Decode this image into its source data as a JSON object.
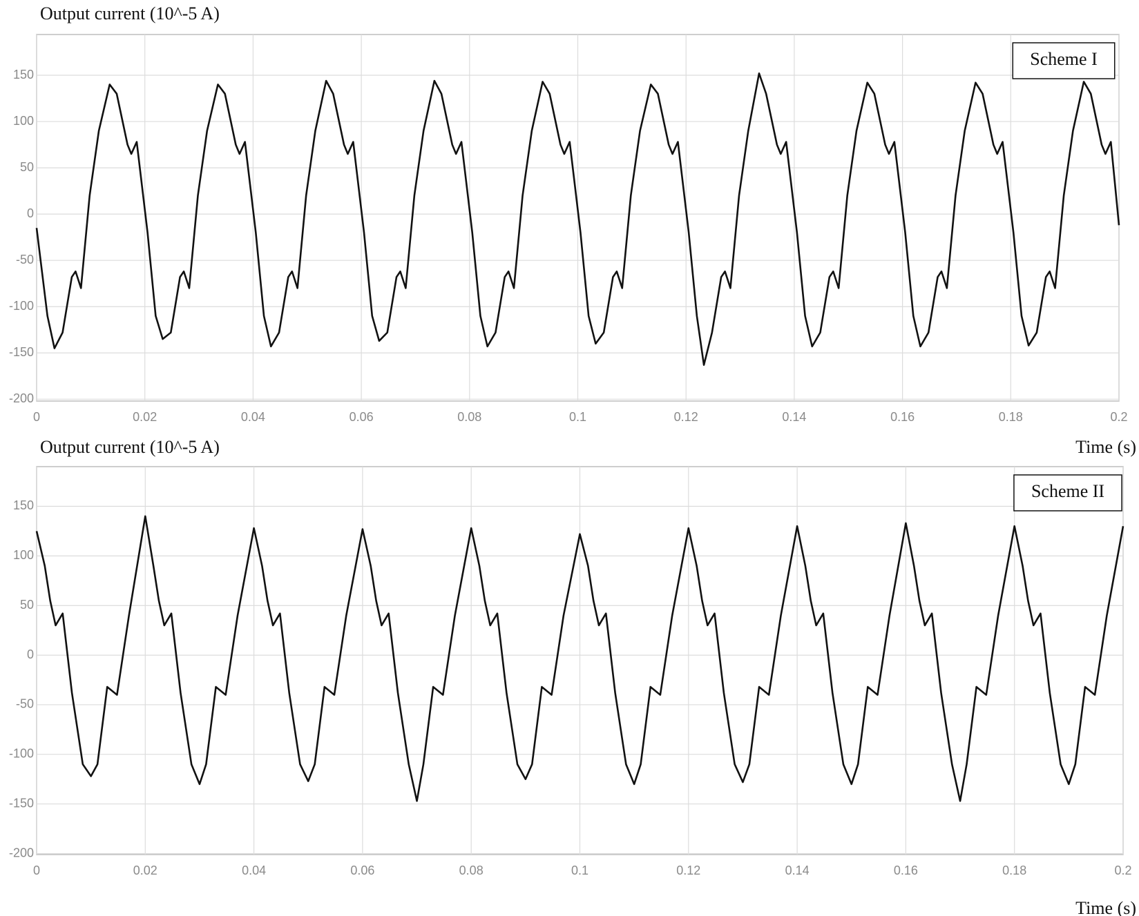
{
  "chart_data": [
    {
      "type": "line",
      "y_label": "Output current (10^-5 A)",
      "x_label": "Time (s)",
      "x": [
        0,
        0.002,
        0.0033,
        0.0048,
        0.0065,
        0.0072,
        0.0082,
        0.0098,
        0.0115,
        0.0135,
        0.0148,
        0.0168,
        0.0175,
        0.0185,
        0.0205,
        0.022,
        0.0233,
        0.0248,
        0.0265,
        0.0272,
        0.0282,
        0.0298,
        0.0315,
        0.0335,
        0.0348,
        0.0368,
        0.0375,
        0.0385,
        0.0405,
        0.042,
        0.0433,
        0.0448,
        0.0465,
        0.0472,
        0.0482,
        0.0498,
        0.0515,
        0.0535,
        0.0548,
        0.0568,
        0.0575,
        0.0585,
        0.0605,
        0.062,
        0.0633,
        0.0648,
        0.0665,
        0.0672,
        0.0682,
        0.0698,
        0.0715,
        0.0735,
        0.0748,
        0.0768,
        0.0775,
        0.0785,
        0.0805,
        0.082,
        0.0833,
        0.0848,
        0.0865,
        0.0872,
        0.0882,
        0.0898,
        0.0915,
        0.0935,
        0.0948,
        0.0968,
        0.0975,
        0.0985,
        0.1005,
        0.102,
        0.1033,
        0.1048,
        0.1065,
        0.1072,
        0.1082,
        0.1098,
        0.1115,
        0.1135,
        0.1148,
        0.1168,
        0.1175,
        0.1185,
        0.1205,
        0.122,
        0.1233,
        0.1248,
        0.1265,
        0.1272,
        0.1282,
        0.1298,
        0.1315,
        0.1335,
        0.1348,
        0.1368,
        0.1375,
        0.1385,
        0.1405,
        0.142,
        0.1433,
        0.1448,
        0.1465,
        0.1472,
        0.1482,
        0.1498,
        0.1515,
        0.1535,
        0.1548,
        0.1568,
        0.1575,
        0.1585,
        0.1605,
        0.162,
        0.1633,
        0.1648,
        0.1665,
        0.1672,
        0.1682,
        0.1698,
        0.1715,
        0.1735,
        0.1748,
        0.1768,
        0.1775,
        0.1785,
        0.1805,
        0.182,
        0.1833,
        0.1848,
        0.1865,
        0.1872,
        0.1882,
        0.1898,
        0.1915,
        0.1935,
        0.1948,
        0.1968,
        0.1975,
        0.1985,
        0.2
      ],
      "series": [
        {
          "name": "Scheme I",
          "color": "#111111",
          "values": [
            -15,
            -110,
            -145,
            -128,
            -68,
            -62,
            -80,
            20,
            90,
            140,
            130,
            75,
            65,
            78,
            -20,
            -110,
            -135,
            -128,
            -68,
            -62,
            -80,
            20,
            90,
            140,
            130,
            75,
            65,
            78,
            -20,
            -110,
            -143,
            -128,
            -68,
            -62,
            -80,
            20,
            90,
            144,
            130,
            75,
            65,
            78,
            -20,
            -110,
            -137,
            -128,
            -68,
            -62,
            -80,
            20,
            90,
            144,
            130,
            75,
            65,
            78,
            -20,
            -110,
            -143,
            -128,
            -68,
            -62,
            -80,
            20,
            90,
            143,
            130,
            75,
            65,
            78,
            -20,
            -110,
            -140,
            -128,
            -68,
            -62,
            -80,
            20,
            90,
            140,
            130,
            75,
            65,
            78,
            -20,
            -110,
            -163,
            -128,
            -68,
            -62,
            -80,
            20,
            90,
            152,
            130,
            75,
            65,
            78,
            -20,
            -110,
            -143,
            -128,
            -68,
            -62,
            -80,
            20,
            90,
            142,
            130,
            75,
            65,
            78,
            -20,
            -110,
            -143,
            -128,
            -68,
            -62,
            -80,
            20,
            90,
            142,
            130,
            75,
            65,
            78,
            -20,
            -110,
            -142,
            -128,
            -68,
            -62,
            -80,
            20,
            90,
            143,
            130,
            75,
            65,
            78,
            -12
          ]
        }
      ],
      "xlim": [
        0,
        0.2
      ],
      "ylim": [
        -202,
        194
      ],
      "xticks": [
        0,
        0.02,
        0.04,
        0.06,
        0.08,
        0.1,
        0.12,
        0.14,
        0.16,
        0.18,
        0.2
      ],
      "yticks": [
        -200,
        -150,
        -100,
        -50,
        0,
        50,
        100,
        150
      ],
      "grid": true
    },
    {
      "type": "line",
      "y_label": "Output current (10^-5 A)",
      "x_label": "Time (s)",
      "x": [
        0,
        0.0015,
        0.0025,
        0.0035,
        0.0048,
        0.0065,
        0.0085,
        0.01,
        0.0112,
        0.013,
        0.0148,
        0.017,
        0.02,
        0.0215,
        0.0225,
        0.0235,
        0.0248,
        0.0265,
        0.0285,
        0.03,
        0.0312,
        0.033,
        0.0348,
        0.037,
        0.04,
        0.0415,
        0.0425,
        0.0435,
        0.0448,
        0.0465,
        0.0485,
        0.05,
        0.0512,
        0.053,
        0.0548,
        0.057,
        0.06,
        0.0615,
        0.0625,
        0.0635,
        0.0648,
        0.0665,
        0.0685,
        0.07,
        0.0712,
        0.073,
        0.0748,
        0.077,
        0.08,
        0.0815,
        0.0825,
        0.0835,
        0.0848,
        0.0865,
        0.0885,
        0.09,
        0.0912,
        0.093,
        0.0948,
        0.097,
        0.1,
        0.1015,
        0.1025,
        0.1035,
        0.1048,
        0.1065,
        0.1085,
        0.11,
        0.1112,
        0.113,
        0.1148,
        0.117,
        0.12,
        0.1215,
        0.1225,
        0.1235,
        0.1248,
        0.1265,
        0.1285,
        0.13,
        0.1312,
        0.133,
        0.1348,
        0.137,
        0.14,
        0.1415,
        0.1425,
        0.1435,
        0.1448,
        0.1465,
        0.1485,
        0.15,
        0.1512,
        0.153,
        0.1548,
        0.157,
        0.16,
        0.1615,
        0.1625,
        0.1635,
        0.1648,
        0.1665,
        0.1685,
        0.17,
        0.1712,
        0.173,
        0.1748,
        0.177,
        0.18,
        0.1815,
        0.1825,
        0.1835,
        0.1848,
        0.1865,
        0.1885,
        0.19,
        0.1912,
        0.193,
        0.1948,
        0.197,
        0.2
      ],
      "series": [
        {
          "name": "Scheme II",
          "color": "#111111",
          "values": [
            125,
            90,
            55,
            30,
            42,
            -38,
            -110,
            -122,
            -110,
            -32,
            -40,
            40,
            140,
            90,
            55,
            30,
            42,
            -38,
            -110,
            -130,
            -110,
            -32,
            -40,
            40,
            128,
            90,
            55,
            30,
            42,
            -38,
            -110,
            -127,
            -110,
            -32,
            -40,
            40,
            127,
            90,
            55,
            30,
            42,
            -38,
            -110,
            -147,
            -110,
            -32,
            -40,
            40,
            128,
            90,
            55,
            30,
            42,
            -38,
            -110,
            -125,
            -110,
            -32,
            -40,
            40,
            122,
            90,
            55,
            30,
            42,
            -38,
            -110,
            -130,
            -110,
            -32,
            -40,
            40,
            128,
            90,
            55,
            30,
            42,
            -38,
            -110,
            -128,
            -110,
            -32,
            -40,
            40,
            130,
            90,
            55,
            30,
            42,
            -38,
            -110,
            -130,
            -110,
            -32,
            -40,
            40,
            133,
            90,
            55,
            30,
            42,
            -38,
            -110,
            -147,
            -110,
            -32,
            -40,
            40,
            130,
            90,
            55,
            30,
            42,
            -38,
            -110,
            -130,
            -110,
            -32,
            -40,
            40,
            130
          ]
        }
      ],
      "xlim": [
        0,
        0.2
      ],
      "ylim": [
        -201,
        190
      ],
      "xticks": [
        0,
        0.02,
        0.04,
        0.06,
        0.08,
        0.1,
        0.12,
        0.14,
        0.16,
        0.18,
        0.2
      ],
      "yticks": [
        -200,
        -150,
        -100,
        -50,
        0,
        50,
        100,
        150
      ],
      "grid": true
    }
  ]
}
